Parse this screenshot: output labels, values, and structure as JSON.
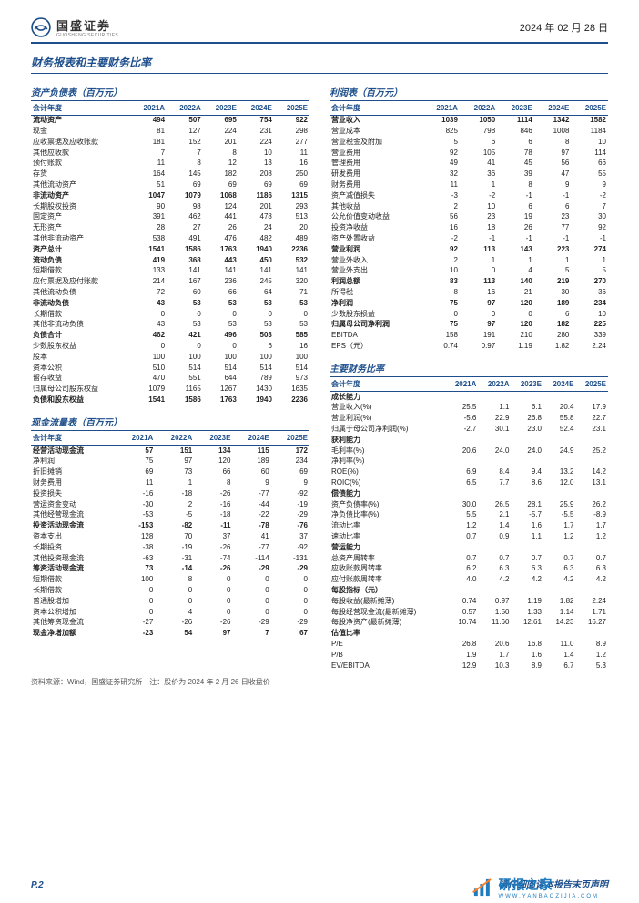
{
  "header": {
    "company": "国盛证券",
    "company_sub": "GUOSHENG SECURITIES",
    "date": "2024 年 02 月 28 日"
  },
  "section_title": "财务报表和主要财务比率",
  "years": [
    "2021A",
    "2022A",
    "2023E",
    "2024E",
    "2025E"
  ],
  "left": [
    {
      "title": "资产负债表（百万元）",
      "header": "会计年度",
      "rows": [
        {
          "b": 1,
          "l": "流动资产",
          "v": [
            "494",
            "507",
            "695",
            "754",
            "922"
          ]
        },
        {
          "l": "现金",
          "v": [
            "81",
            "127",
            "224",
            "231",
            "298"
          ]
        },
        {
          "l": "应收票据及应收账款",
          "v": [
            "181",
            "152",
            "201",
            "224",
            "277"
          ]
        },
        {
          "l": "其他应收款",
          "v": [
            "7",
            "7",
            "8",
            "10",
            "11"
          ]
        },
        {
          "l": "预付账款",
          "v": [
            "11",
            "8",
            "12",
            "13",
            "16"
          ]
        },
        {
          "l": "存货",
          "v": [
            "164",
            "145",
            "182",
            "208",
            "250"
          ]
        },
        {
          "l": "其他流动资产",
          "v": [
            "51",
            "69",
            "69",
            "69",
            "69"
          ]
        },
        {
          "b": 1,
          "l": "非流动资产",
          "v": [
            "1047",
            "1079",
            "1068",
            "1186",
            "1315"
          ]
        },
        {
          "l": "长期股权投资",
          "v": [
            "90",
            "98",
            "124",
            "201",
            "293"
          ]
        },
        {
          "l": "固定资产",
          "v": [
            "391",
            "462",
            "441",
            "478",
            "513"
          ]
        },
        {
          "l": "无形资产",
          "v": [
            "28",
            "27",
            "26",
            "24",
            "20"
          ]
        },
        {
          "l": "其他非流动资产",
          "v": [
            "538",
            "491",
            "476",
            "482",
            "489"
          ]
        },
        {
          "b": 1,
          "l": "资产总计",
          "v": [
            "1541",
            "1586",
            "1763",
            "1940",
            "2236"
          ]
        },
        {
          "b": 1,
          "l": "流动负债",
          "v": [
            "419",
            "368",
            "443",
            "450",
            "532"
          ]
        },
        {
          "l": "短期借款",
          "v": [
            "133",
            "141",
            "141",
            "141",
            "141"
          ]
        },
        {
          "l": "应付票据及应付账款",
          "v": [
            "214",
            "167",
            "236",
            "245",
            "320"
          ]
        },
        {
          "l": "其他流动负债",
          "v": [
            "72",
            "60",
            "66",
            "64",
            "71"
          ]
        },
        {
          "b": 1,
          "l": "非流动负债",
          "v": [
            "43",
            "53",
            "53",
            "53",
            "53"
          ]
        },
        {
          "l": "长期借款",
          "v": [
            "0",
            "0",
            "0",
            "0",
            "0"
          ]
        },
        {
          "l": "其他非流动负债",
          "v": [
            "43",
            "53",
            "53",
            "53",
            "53"
          ]
        },
        {
          "b": 1,
          "l": "负债合计",
          "v": [
            "462",
            "421",
            "496",
            "503",
            "585"
          ]
        },
        {
          "l": "少数股东权益",
          "v": [
            "0",
            "0",
            "0",
            "6",
            "16"
          ]
        },
        {
          "l": "股本",
          "v": [
            "100",
            "100",
            "100",
            "100",
            "100"
          ]
        },
        {
          "l": "资本公积",
          "v": [
            "510",
            "514",
            "514",
            "514",
            "514"
          ]
        },
        {
          "l": "留存收益",
          "v": [
            "470",
            "551",
            "644",
            "789",
            "973"
          ]
        },
        {
          "l": "归属母公司股东权益",
          "v": [
            "1079",
            "1165",
            "1267",
            "1430",
            "1635"
          ]
        },
        {
          "b": 1,
          "l": "负债和股东权益",
          "v": [
            "1541",
            "1586",
            "1763",
            "1940",
            "2236"
          ]
        }
      ]
    },
    {
      "title": "现金流量表（百万元）",
      "header": "会计年度",
      "rows": [
        {
          "b": 1,
          "l": "经营活动现金流",
          "v": [
            "57",
            "151",
            "134",
            "115",
            "172"
          ]
        },
        {
          "l": "净利润",
          "v": [
            "75",
            "97",
            "120",
            "189",
            "234"
          ]
        },
        {
          "l": "折旧摊销",
          "v": [
            "69",
            "73",
            "66",
            "60",
            "69"
          ]
        },
        {
          "l": "财务费用",
          "v": [
            "11",
            "1",
            "8",
            "9",
            "9"
          ]
        },
        {
          "l": "投资损失",
          "v": [
            "-16",
            "-18",
            "-26",
            "-77",
            "-92"
          ]
        },
        {
          "l": "营运资金变动",
          "v": [
            "-30",
            "2",
            "-16",
            "-44",
            "-19"
          ]
        },
        {
          "l": "其他经营现金流",
          "v": [
            "-53",
            "-5",
            "-18",
            "-22",
            "-29"
          ]
        },
        {
          "b": 1,
          "l": "投资活动现金流",
          "v": [
            "-153",
            "-82",
            "-11",
            "-78",
            "-76"
          ]
        },
        {
          "l": "资本支出",
          "v": [
            "128",
            "70",
            "37",
            "41",
            "37"
          ]
        },
        {
          "l": "长期投资",
          "v": [
            "-38",
            "-19",
            "-26",
            "-77",
            "-92"
          ]
        },
        {
          "l": "其他投资现金流",
          "v": [
            "-63",
            "-31",
            "-74",
            "-114",
            "-131"
          ]
        },
        {
          "b": 1,
          "l": "筹资活动现金流",
          "v": [
            "73",
            "-14",
            "-26",
            "-29",
            "-29"
          ]
        },
        {
          "l": "短期借款",
          "v": [
            "100",
            "8",
            "0",
            "0",
            "0"
          ]
        },
        {
          "l": "长期借款",
          "v": [
            "0",
            "0",
            "0",
            "0",
            "0"
          ]
        },
        {
          "l": "普通股增加",
          "v": [
            "0",
            "0",
            "0",
            "0",
            "0"
          ]
        },
        {
          "l": "资本公积增加",
          "v": [
            "0",
            "4",
            "0",
            "0",
            "0"
          ]
        },
        {
          "l": "其他筹资现金流",
          "v": [
            "-27",
            "-26",
            "-26",
            "-29",
            "-29"
          ]
        },
        {
          "b": 1,
          "l": "现金净增加额",
          "v": [
            "-23",
            "54",
            "97",
            "7",
            "67"
          ]
        }
      ]
    }
  ],
  "right": [
    {
      "title": "利润表（百万元）",
      "header": "会计年度",
      "rows": [
        {
          "b": 1,
          "l": "营业收入",
          "v": [
            "1039",
            "1050",
            "1114",
            "1342",
            "1582"
          ]
        },
        {
          "l": "营业成本",
          "v": [
            "825",
            "798",
            "846",
            "1008",
            "1184"
          ]
        },
        {
          "l": "营业税金及附加",
          "v": [
            "5",
            "6",
            "6",
            "8",
            "10"
          ]
        },
        {
          "l": "营业费用",
          "v": [
            "92",
            "105",
            "78",
            "97",
            "114"
          ]
        },
        {
          "l": "管理费用",
          "v": [
            "49",
            "41",
            "45",
            "56",
            "66"
          ]
        },
        {
          "l": "研发费用",
          "v": [
            "32",
            "36",
            "39",
            "47",
            "55"
          ]
        },
        {
          "l": "财务费用",
          "v": [
            "11",
            "1",
            "8",
            "9",
            "9"
          ]
        },
        {
          "l": "资产减值损失",
          "v": [
            "-3",
            "-2",
            "-1",
            "-1",
            "-2"
          ]
        },
        {
          "l": "其他收益",
          "v": [
            "2",
            "10",
            "6",
            "6",
            "7"
          ]
        },
        {
          "l": "公允价值变动收益",
          "v": [
            "56",
            "23",
            "19",
            "23",
            "30"
          ]
        },
        {
          "l": "投资净收益",
          "v": [
            "16",
            "18",
            "26",
            "77",
            "92"
          ]
        },
        {
          "l": "资产处置收益",
          "v": [
            "-2",
            "-1",
            "-1",
            "-1",
            "-1"
          ]
        },
        {
          "b": 1,
          "l": "营业利润",
          "v": [
            "92",
            "113",
            "143",
            "223",
            "274"
          ]
        },
        {
          "l": "营业外收入",
          "v": [
            "2",
            "1",
            "1",
            "1",
            "1"
          ]
        },
        {
          "l": "营业外支出",
          "v": [
            "10",
            "0",
            "4",
            "5",
            "5"
          ]
        },
        {
          "b": 1,
          "l": "利润总额",
          "v": [
            "83",
            "113",
            "140",
            "219",
            "270"
          ]
        },
        {
          "l": "所得税",
          "v": [
            "8",
            "16",
            "21",
            "30",
            "36"
          ]
        },
        {
          "b": 1,
          "l": "净利润",
          "v": [
            "75",
            "97",
            "120",
            "189",
            "234"
          ]
        },
        {
          "l": "少数股东损益",
          "v": [
            "0",
            "0",
            "0",
            "6",
            "10"
          ]
        },
        {
          "b": 1,
          "l": "归属母公司净利润",
          "v": [
            "75",
            "97",
            "120",
            "182",
            "225"
          ]
        },
        {
          "l": "EBITDA",
          "v": [
            "158",
            "191",
            "210",
            "280",
            "339"
          ]
        },
        {
          "l": "EPS（元）",
          "v": [
            "0.74",
            "0.97",
            "1.19",
            "1.82",
            "2.24"
          ]
        }
      ]
    },
    {
      "title": "主要财务比率",
      "header": "会计年度",
      "rows": [
        {
          "b": 1,
          "l": "成长能力",
          "v": [
            "",
            "",
            "",
            "",
            ""
          ]
        },
        {
          "l": "营业收入(%)",
          "v": [
            "25.5",
            "1.1",
            "6.1",
            "20.4",
            "17.9"
          ]
        },
        {
          "l": "营业利润(%)",
          "v": [
            "-5.6",
            "22.9",
            "26.8",
            "55.8",
            "22.7"
          ]
        },
        {
          "l": "归属于母公司净利润(%)",
          "v": [
            "-2.7",
            "30.1",
            "23.0",
            "52.4",
            "23.1"
          ]
        },
        {
          "b": 1,
          "l": "获利能力",
          "v": [
            "",
            "",
            "",
            "",
            ""
          ]
        },
        {
          "l": "毛利率(%)",
          "v": [
            "20.6",
            "24.0",
            "24.0",
            "24.9",
            "25.2"
          ]
        },
        {
          "l": "净利率(%)",
          "v": [
            "",
            "",
            "",
            "",
            ""
          ]
        },
        {
          "l": "ROE(%)",
          "v": [
            "6.9",
            "8.4",
            "9.4",
            "13.2",
            "14.2"
          ]
        },
        {
          "l": "ROIC(%)",
          "v": [
            "6.5",
            "7.7",
            "8.6",
            "12.0",
            "13.1"
          ]
        },
        {
          "b": 1,
          "l": "偿债能力",
          "v": [
            "",
            "",
            "",
            "",
            ""
          ]
        },
        {
          "l": "资产负债率(%)",
          "v": [
            "30.0",
            "26.5",
            "28.1",
            "25.9",
            "26.2"
          ]
        },
        {
          "l": "净负债比率(%)",
          "v": [
            "5.5",
            "2.1",
            "-5.7",
            "-5.5",
            "-8.9"
          ]
        },
        {
          "l": "流动比率",
          "v": [
            "1.2",
            "1.4",
            "1.6",
            "1.7",
            "1.7"
          ]
        },
        {
          "l": "速动比率",
          "v": [
            "0.7",
            "0.9",
            "1.1",
            "1.2",
            "1.2"
          ]
        },
        {
          "b": 1,
          "l": "营运能力",
          "v": [
            "",
            "",
            "",
            "",
            ""
          ]
        },
        {
          "l": "总资产周转率",
          "v": [
            "0.7",
            "0.7",
            "0.7",
            "0.7",
            "0.7"
          ]
        },
        {
          "l": "应收账款周转率",
          "v": [
            "6.2",
            "6.3",
            "6.3",
            "6.3",
            "6.3"
          ]
        },
        {
          "l": "应付账款周转率",
          "v": [
            "4.0",
            "4.2",
            "4.2",
            "4.2",
            "4.2"
          ]
        },
        {
          "b": 1,
          "l": "每股指标（元）",
          "v": [
            "",
            "",
            "",
            "",
            ""
          ]
        },
        {
          "l": "每股收益(最新摊薄)",
          "v": [
            "0.74",
            "0.97",
            "1.19",
            "1.82",
            "2.24"
          ]
        },
        {
          "l": "每股经营现金流(最新摊薄)",
          "v": [
            "0.57",
            "1.50",
            "1.33",
            "1.14",
            "1.71"
          ]
        },
        {
          "l": "每股净资产(最新摊薄)",
          "v": [
            "10.74",
            "11.60",
            "12.61",
            "14.23",
            "16.27"
          ]
        },
        {
          "b": 1,
          "l": "估值比率",
          "v": [
            "",
            "",
            "",
            "",
            ""
          ]
        },
        {
          "l": "P/E",
          "v": [
            "26.8",
            "20.6",
            "16.8",
            "11.0",
            "8.9"
          ]
        },
        {
          "l": "P/B",
          "v": [
            "1.9",
            "1.7",
            "1.6",
            "1.4",
            "1.2"
          ]
        },
        {
          "l": "EV/EBITDA",
          "v": [
            "12.9",
            "10.3",
            "8.9",
            "6.7",
            "5.3"
          ]
        }
      ]
    }
  ],
  "source": "资料来源：Wind，国盛证券研究所　注：股价为 2024 年 2 月 26 日收盘价",
  "footer": {
    "page": "P.2",
    "disclaimer": "请仔细阅读本报告末页声明"
  },
  "watermark": {
    "name": "研报之家",
    "sub": "WWW.YANBAOZIJIA.COM"
  },
  "colors": {
    "brand": "#1e4f8c",
    "wm": "#1f7bbf"
  }
}
